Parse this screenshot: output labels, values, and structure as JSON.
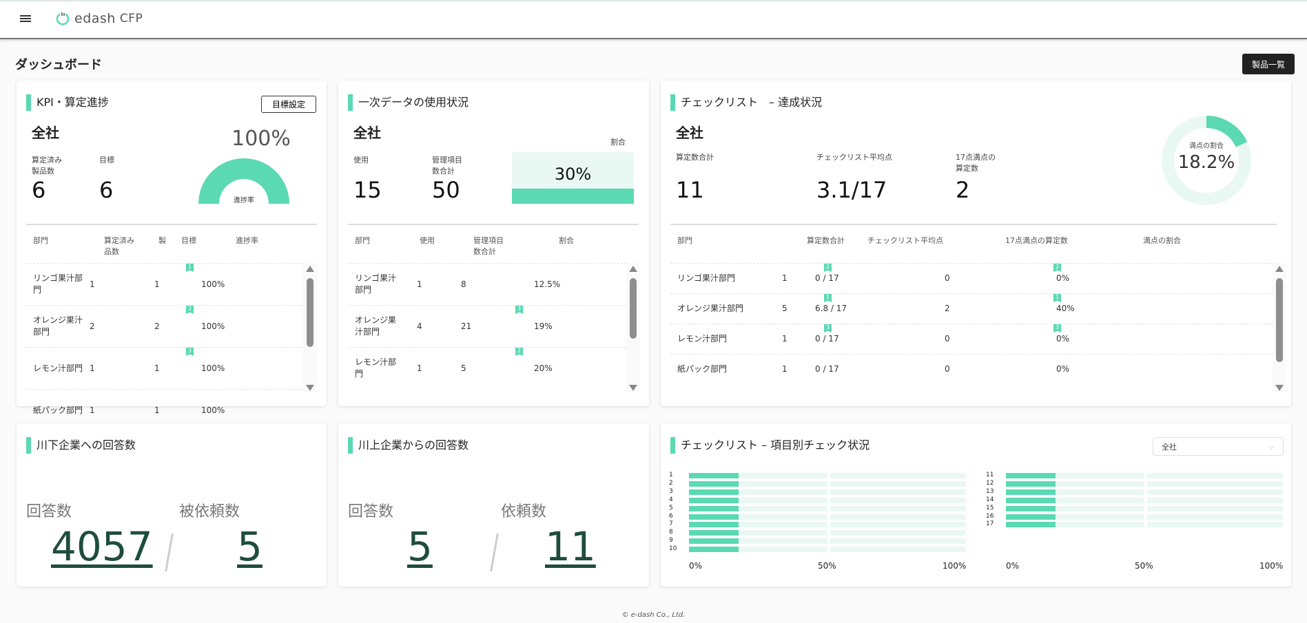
{
  "header": {
    "app_name": "edash",
    "app_suffix": "CFP",
    "menu_icon": "hamburger-icon",
    "logo_icon": "power-icon"
  },
  "page": {
    "title": "ダッシュボード",
    "product_list_button": "製品一覧"
  },
  "accent_color": "#5ad9b3",
  "kpi": {
    "title": "KPI・算定進捗",
    "goal_button": "目標設定",
    "scope": "全社",
    "calculated_label": "算定済み\n製品数",
    "calculated_value": "6",
    "target_label": "目標",
    "target_value": "6",
    "progress_percent": "100%",
    "progress_value": 100,
    "gauge_label": "進捗率",
    "columns": [
      "部門",
      "算定済み\n品数",
      "製",
      "目標",
      "進捗率"
    ],
    "rows": [
      {
        "dept": "リンゴ果汁部\n門",
        "done": "1",
        "target": "1",
        "rate": "100%",
        "rank": "1"
      },
      {
        "dept": "オレンジ果汁\n部門",
        "done": "2",
        "target": "2",
        "rate": "100%",
        "rank": "2"
      },
      {
        "dept": "レモン汁部門",
        "done": "1",
        "target": "1",
        "rate": "100%",
        "rank": "3"
      },
      {
        "dept": "紙パック部門",
        "done": "1",
        "target": "1",
        "rate": "100%",
        "rank": ""
      }
    ]
  },
  "primary": {
    "title": "一次データの使用状況",
    "scope": "全社",
    "use_label": "使用",
    "use_value": "15",
    "items_label": "管理項目\n数合計",
    "items_value": "50",
    "ratio_label": "割合",
    "ratio_value": "30%",
    "ratio_fraction": 0.3,
    "columns": [
      "部門",
      "使用",
      "管理項目\n数合計",
      "割合"
    ],
    "rows": [
      {
        "dept": "リンゴ果汁\n部門",
        "use": "1",
        "items": "8",
        "ratio": "12.5%",
        "rank": ""
      },
      {
        "dept": "オレンジ果\n汁部門",
        "use": "4",
        "items": "21",
        "ratio": "19%",
        "rank": "3"
      },
      {
        "dept": "レモン汁部\n門",
        "use": "1",
        "items": "5",
        "ratio": "20%",
        "rank": "2"
      }
    ]
  },
  "checklist": {
    "title": "チェックリスト　– 達成状況",
    "scope": "全社",
    "total_label": "算定数合計",
    "total_value": "11",
    "avg_label": "チェックリスト平均点",
    "avg_value": "3.1/17",
    "full_label": "17点満点の\n算定数",
    "full_value": "2",
    "donut_label": "満点の割合",
    "donut_value": "18.2%",
    "donut_fraction": 0.182,
    "columns": [
      "部門",
      "算定数合計",
      "チェックリスト平均点",
      "17点満点の算定数",
      "満点の割合"
    ],
    "rows": [
      {
        "dept": "リンゴ果汁部門",
        "total": "1",
        "avg": "0 / 17",
        "full": "0",
        "ratio": "0%",
        "rank": "2"
      },
      {
        "dept": "オレンジ果汁部門",
        "total": "5",
        "avg": "6.8 / 17",
        "full": "2",
        "ratio": "40%",
        "rank": "1"
      },
      {
        "dept": "レモン汁部門",
        "total": "1",
        "avg": "0 / 17",
        "full": "0",
        "ratio": "0%",
        "rank": "3"
      },
      {
        "dept": "紙パック部門",
        "total": "1",
        "avg": "0 / 17",
        "full": "0",
        "ratio": "0%",
        "rank": ""
      }
    ]
  },
  "downstream": {
    "title": "川下企業への回答数",
    "answers_label": "回答数",
    "answers_value": "4057",
    "requests_label": "被依頼数",
    "requests_value": "5"
  },
  "upstream": {
    "title": "川上企業からの回答数",
    "answers_label": "回答数",
    "answers_value": "5",
    "requests_label": "依頼数",
    "requests_value": "11"
  },
  "chart_data": {
    "type": "bar",
    "title": "チェックリスト – 項目別チェック状況",
    "filter_selected": "全社",
    "categories": [
      "1",
      "2",
      "3",
      "4",
      "5",
      "6",
      "7",
      "8",
      "9",
      "10",
      "11",
      "12",
      "13",
      "14",
      "15",
      "16",
      "17"
    ],
    "values": [
      18,
      18,
      18,
      18,
      18,
      18,
      18,
      18,
      18,
      18,
      18,
      18,
      18,
      18,
      18,
      18,
      18
    ],
    "xlim": [
      0,
      100
    ],
    "tick_labels": [
      "0%",
      "50%",
      "100%"
    ]
  },
  "footer": {
    "copyright": "© e-dash Co., Ltd."
  }
}
